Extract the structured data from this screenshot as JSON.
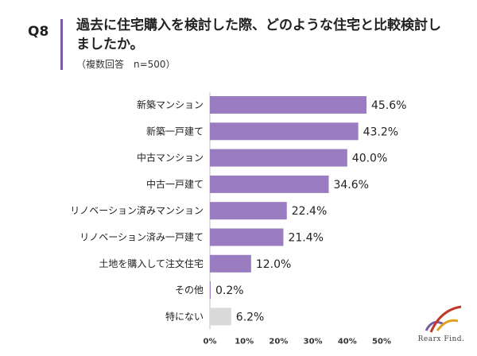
{
  "header": {
    "question_number": "Q8",
    "title": "過去に住宅購入を検討した際、どのような住宅と比較検討しましたか。",
    "subtitle": "（複数回答　n=500）"
  },
  "logo": {
    "text": "Rearx Find."
  },
  "colors": {
    "accent": "#7b5aa6",
    "bar": "#9a7cc0",
    "bar_none": "#d9d9d9"
  },
  "chart_data": {
    "type": "bar",
    "orientation": "horizontal",
    "categories": [
      "新築マンション",
      "新築一戸建て",
      "中古マンション",
      "中古一戸建て",
      "リノベーション済みマンション",
      "リノベーション済み一戸建て",
      "土地を購入して注文住宅",
      "その他",
      "特にない"
    ],
    "values": [
      45.6,
      43.2,
      40.0,
      34.6,
      22.4,
      21.4,
      12.0,
      0.2,
      6.2
    ],
    "value_labels": [
      "45.6%",
      "43.2%",
      "40.0%",
      "34.6%",
      "22.4%",
      "21.4%",
      "12.0%",
      "0.2%",
      "6.2%"
    ],
    "xlim": [
      0,
      50
    ],
    "xticks": [
      0,
      10,
      20,
      30,
      40,
      50
    ],
    "xtick_labels": [
      "0%",
      "10%",
      "20%",
      "30%",
      "40%",
      "50%"
    ],
    "grid": false
  }
}
